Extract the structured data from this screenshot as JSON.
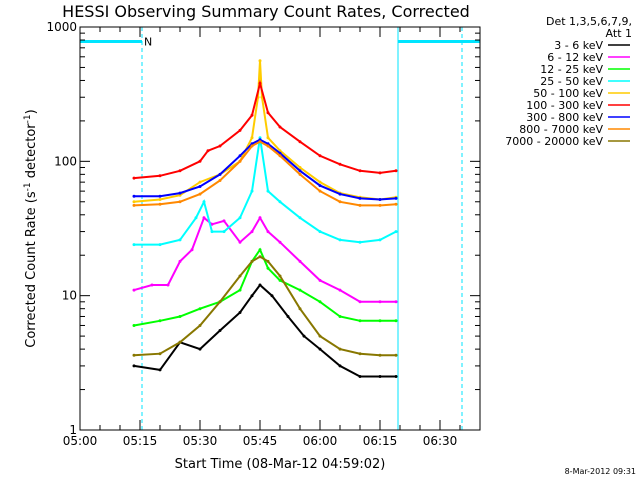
{
  "chart_data": {
    "type": "line",
    "title": "HESSI Observing Summary Count Rates, Corrected",
    "xlabel": "Start Time (08-Mar-12 04:59:02)",
    "ylabel_parts": [
      "Corrected Count Rate (s",
      "-1",
      " detector",
      "-1",
      ")"
    ],
    "y_scale": "log",
    "ylim": [
      1,
      1000
    ],
    "xlim": [
      0,
      100
    ],
    "x_ticks": [
      {
        "label": "05:00",
        "x": 0
      },
      {
        "label": "05:15",
        "x": 15
      },
      {
        "label": "05:30",
        "x": 30
      },
      {
        "label": "05:45",
        "x": 45
      },
      {
        "label": "06:00",
        "x": 60
      },
      {
        "label": "06:15",
        "x": 75
      },
      {
        "label": "06:30",
        "x": 90
      }
    ],
    "y_ticks": [
      {
        "label": "1",
        "y": 1
      },
      {
        "label": "10",
        "y": 10
      },
      {
        "label": "100",
        "y": 100
      },
      {
        "label": "1000",
        "y": 1000
      }
    ],
    "grid": false,
    "legend_position": "right",
    "legend_header": [
      "Det 1,3,5,6,7,9,",
      "Att 1"
    ],
    "annotations": {
      "night_label": "N",
      "night_intervals": [
        [
          0,
          15.5
        ],
        [
          79.5,
          100
        ]
      ],
      "saa_marker_x": 79.5,
      "night_level_y": 780
    },
    "series": [
      {
        "name": "3 - 6 keV",
        "color": "#000000",
        "points": [
          [
            13.5,
            3.0
          ],
          [
            20,
            2.8
          ],
          [
            25,
            4.5
          ],
          [
            30,
            4.0
          ],
          [
            35,
            5.5
          ],
          [
            40,
            7.5
          ],
          [
            43,
            10
          ],
          [
            45,
            12
          ],
          [
            48,
            10
          ],
          [
            52,
            7
          ],
          [
            56,
            5
          ],
          [
            60,
            4
          ],
          [
            65,
            3
          ],
          [
            70,
            2.5
          ],
          [
            75,
            2.5
          ],
          [
            79,
            2.5
          ]
        ]
      },
      {
        "name": "6 - 12 keV",
        "color": "#ff00ff",
        "points": [
          [
            13.5,
            11
          ],
          [
            18,
            12
          ],
          [
            22,
            12
          ],
          [
            25,
            18
          ],
          [
            28,
            22
          ],
          [
            31,
            38
          ],
          [
            33,
            34
          ],
          [
            36,
            36
          ],
          [
            40,
            25
          ],
          [
            43,
            30
          ],
          [
            45,
            38
          ],
          [
            47,
            30
          ],
          [
            50,
            25
          ],
          [
            55,
            18
          ],
          [
            60,
            13
          ],
          [
            65,
            11
          ],
          [
            70,
            9
          ],
          [
            75,
            9
          ],
          [
            79,
            9
          ]
        ]
      },
      {
        "name": "12 - 25 keV",
        "color": "#00ff00",
        "points": [
          [
            13.5,
            6
          ],
          [
            20,
            6.5
          ],
          [
            25,
            7
          ],
          [
            30,
            8
          ],
          [
            35,
            9
          ],
          [
            40,
            11
          ],
          [
            43,
            18
          ],
          [
            45,
            22
          ],
          [
            47,
            16
          ],
          [
            50,
            13
          ],
          [
            55,
            11
          ],
          [
            60,
            9
          ],
          [
            65,
            7
          ],
          [
            70,
            6.5
          ],
          [
            75,
            6.5
          ],
          [
            79,
            6.5
          ]
        ]
      },
      {
        "name": "25 - 50 keV",
        "color": "#00ffff",
        "points": [
          [
            13.5,
            24
          ],
          [
            20,
            24
          ],
          [
            25,
            26
          ],
          [
            29,
            38
          ],
          [
            31,
            50
          ],
          [
            33,
            30
          ],
          [
            36,
            30
          ],
          [
            40,
            38
          ],
          [
            43,
            60
          ],
          [
            45,
            150
          ],
          [
            47,
            60
          ],
          [
            50,
            50
          ],
          [
            55,
            38
          ],
          [
            60,
            30
          ],
          [
            65,
            26
          ],
          [
            70,
            25
          ],
          [
            75,
            26
          ],
          [
            79,
            30
          ]
        ]
      },
      {
        "name": "50 - 100 keV",
        "color": "#ffcc00",
        "points": [
          [
            13.5,
            50
          ],
          [
            20,
            52
          ],
          [
            25,
            56
          ],
          [
            30,
            70
          ],
          [
            35,
            80
          ],
          [
            40,
            100
          ],
          [
            43,
            150
          ],
          [
            44.5,
            300
          ],
          [
            45,
            560
          ],
          [
            45.5,
            300
          ],
          [
            47,
            150
          ],
          [
            50,
            120
          ],
          [
            55,
            90
          ],
          [
            60,
            70
          ],
          [
            65,
            58
          ],
          [
            70,
            54
          ],
          [
            75,
            52
          ],
          [
            79,
            54
          ]
        ]
      },
      {
        "name": "100 - 300 keV",
        "color": "#ff0000",
        "points": [
          [
            13.5,
            75
          ],
          [
            20,
            78
          ],
          [
            25,
            85
          ],
          [
            30,
            100
          ],
          [
            32,
            120
          ],
          [
            35,
            130
          ],
          [
            40,
            170
          ],
          [
            43,
            220
          ],
          [
            45,
            380
          ],
          [
            47,
            230
          ],
          [
            50,
            180
          ],
          [
            55,
            140
          ],
          [
            60,
            110
          ],
          [
            65,
            95
          ],
          [
            70,
            85
          ],
          [
            75,
            82
          ],
          [
            79,
            85
          ]
        ]
      },
      {
        "name": "300 - 800 keV",
        "color": "#0000ff",
        "points": [
          [
            13.5,
            55
          ],
          [
            20,
            55
          ],
          [
            25,
            58
          ],
          [
            30,
            65
          ],
          [
            35,
            80
          ],
          [
            40,
            110
          ],
          [
            43,
            135
          ],
          [
            45,
            145
          ],
          [
            47,
            135
          ],
          [
            50,
            115
          ],
          [
            55,
            85
          ],
          [
            60,
            66
          ],
          [
            65,
            57
          ],
          [
            70,
            53
          ],
          [
            75,
            52
          ],
          [
            79,
            53
          ]
        ]
      },
      {
        "name": "800 - 7000 keV",
        "color": "#ff8800",
        "points": [
          [
            13.5,
            47
          ],
          [
            20,
            48
          ],
          [
            25,
            50
          ],
          [
            30,
            57
          ],
          [
            35,
            72
          ],
          [
            40,
            100
          ],
          [
            43,
            130
          ],
          [
            45,
            140
          ],
          [
            47,
            130
          ],
          [
            50,
            110
          ],
          [
            55,
            80
          ],
          [
            60,
            60
          ],
          [
            65,
            50
          ],
          [
            70,
            47
          ],
          [
            75,
            47
          ],
          [
            79,
            48
          ]
        ]
      },
      {
        "name": "7000 - 20000 keV",
        "color": "#887700",
        "points": [
          [
            13.5,
            3.6
          ],
          [
            20,
            3.7
          ],
          [
            25,
            4.5
          ],
          [
            30,
            6
          ],
          [
            35,
            9
          ],
          [
            40,
            14
          ],
          [
            43,
            18
          ],
          [
            45,
            19.5
          ],
          [
            47,
            18
          ],
          [
            50,
            14
          ],
          [
            55,
            8
          ],
          [
            60,
            5
          ],
          [
            65,
            4
          ],
          [
            70,
            3.7
          ],
          [
            75,
            3.6
          ],
          [
            79,
            3.6
          ]
        ]
      }
    ]
  },
  "footer": {
    "timestamp": "8-Mar-2012 09:31"
  }
}
